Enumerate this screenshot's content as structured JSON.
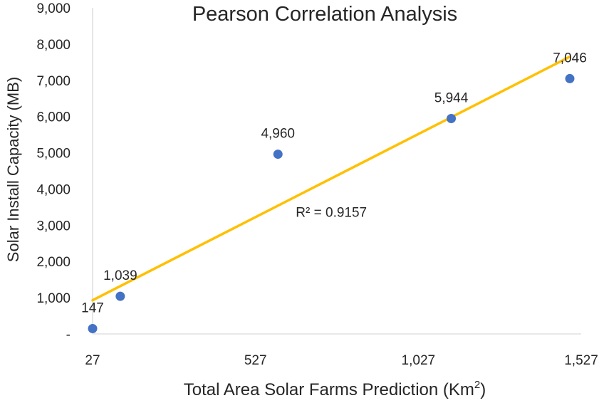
{
  "chart_data": {
    "type": "scatter",
    "title": "Pearson Correlation Analysis",
    "xlabel": "Total Area Solar Farms Prediction (Km",
    "xlabel_sup": "2",
    "xlabel_close": ")",
    "ylabel": "Solar Install Capacity (MB)",
    "xlim": [
      27,
      1527
    ],
    "ylim": [
      0,
      9000
    ],
    "x_ticks": [
      27,
      527,
      1027,
      1527
    ],
    "x_tick_labels": [
      "27",
      "527",
      "1,027",
      "1,527"
    ],
    "y_ticks": [
      0,
      1000,
      2000,
      3000,
      4000,
      5000,
      6000,
      7000,
      8000,
      9000
    ],
    "y_tick_labels": [
      "-",
      "1,000",
      "2,000",
      "3,000",
      "4,000",
      "5,000",
      "6,000",
      "7,000",
      "8,000",
      "9,000"
    ],
    "grid": false,
    "series": [
      {
        "name": "Solar Install Capacity",
        "points": [
          {
            "x": 27,
            "y": 147,
            "label": "147"
          },
          {
            "x": 112,
            "y": 1039,
            "label": "1,039"
          },
          {
            "x": 596,
            "y": 4960,
            "label": "4,960"
          },
          {
            "x": 1128,
            "y": 5944,
            "label": "5,944"
          },
          {
            "x": 1492,
            "y": 7046,
            "label": "7,046"
          }
        ]
      }
    ],
    "trendline": {
      "type": "linear",
      "x_start": 27,
      "y_start": 930,
      "x_end": 1492,
      "y_end": 7650,
      "label": "R² = 0.9157",
      "label_x": 760,
      "label_y": 3350
    },
    "colors": {
      "marker": "#4472C4",
      "trendline": "#FFC000",
      "axis": "#D9D9D9",
      "text": "#262626"
    }
  }
}
